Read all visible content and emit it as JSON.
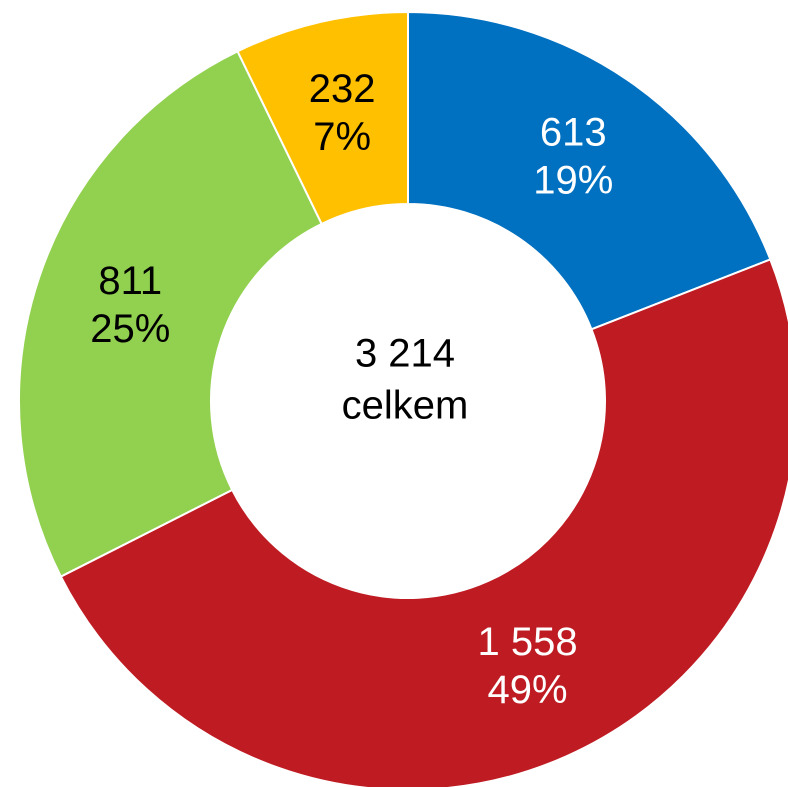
{
  "chart_data": {
    "type": "donut",
    "values": [
      613,
      1558,
      811,
      232
    ],
    "value_labels": [
      "613",
      "1 558",
      "811",
      "232"
    ],
    "percent_labels": [
      "19%",
      "49%",
      "25%",
      "7%"
    ],
    "colors": [
      "#0070c0",
      "#be1b22",
      "#92d050",
      "#ffc000"
    ],
    "label_colors": [
      "#ffffff",
      "#ffffff",
      "#000000",
      "#000000"
    ],
    "total_label": "3 214",
    "total_caption": "celkem"
  }
}
